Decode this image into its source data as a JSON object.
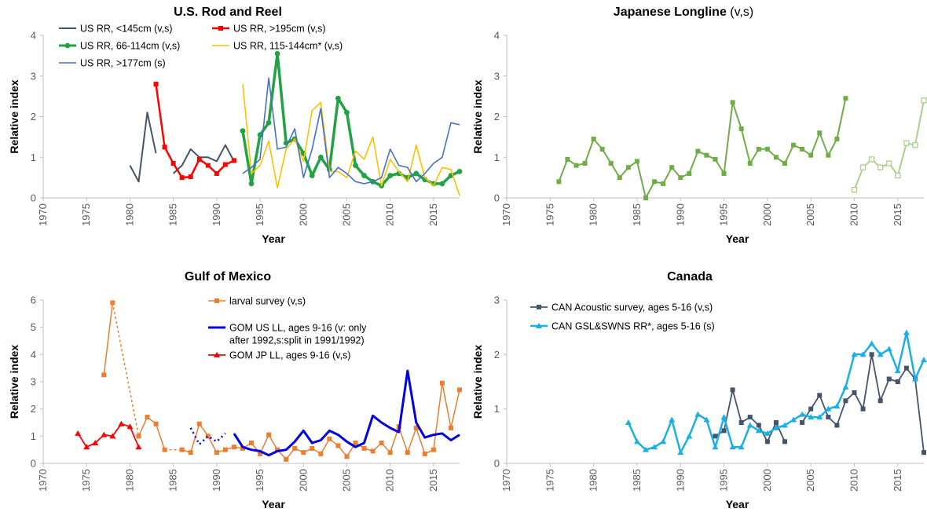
{
  "panels": [
    {
      "title": "U.S. Rod and Reel",
      "title_suffix": "",
      "ylabel": "Relative index",
      "xlabel": "Year",
      "chart_data": {
        "type": "line",
        "xlim": [
          1970,
          2018
        ],
        "ylim": [
          0,
          4
        ],
        "xticks": [
          1970,
          1975,
          1980,
          1985,
          1990,
          1995,
          2000,
          2005,
          2010,
          2015
        ],
        "yticks": [
          0,
          1,
          2,
          3,
          4
        ],
        "legend_position": "top-left",
        "series": [
          {
            "name": "US RR, <145cm (v,s)",
            "color": "#44546A",
            "marker": "none",
            "width": 2,
            "x": [
              1980,
              1981,
              1982,
              1983,
              null,
              1985,
              1986,
              1987,
              1988,
              1989,
              1990,
              1991,
              1992
            ],
            "y": [
              0.8,
              0.4,
              2.1,
              1.1,
              null,
              0.6,
              0.8,
              1.2,
              1.0,
              1.0,
              0.9,
              1.3,
              0.9
            ]
          },
          {
            "name": "US RR, >195cm (v,s)",
            "color": "#FF0000",
            "marker": "square",
            "width": 2.5,
            "x": [
              1983,
              1984,
              1985,
              1986,
              1987,
              1988,
              1989,
              1990,
              1991,
              1992
            ],
            "y": [
              2.8,
              1.25,
              0.85,
              0.5,
              0.52,
              0.95,
              0.8,
              0.6,
              0.82,
              0.92
            ]
          },
          {
            "name": "US RR, 66-114cm (v,s)",
            "color": "#21A345",
            "marker": "circle",
            "width": 3.5,
            "x": [
              1993,
              1994,
              1995,
              1996,
              1997,
              1998,
              1999,
              2000,
              2001,
              2002,
              2003,
              2004,
              2005,
              2006,
              2007,
              2008,
              2009,
              2010,
              2011,
              2012,
              2013,
              2014,
              2015,
              2016,
              2017,
              2018
            ],
            "y": [
              1.65,
              0.35,
              1.55,
              1.85,
              3.55,
              1.35,
              1.45,
              1.1,
              0.55,
              1.0,
              0.7,
              2.45,
              2.1,
              0.8,
              0.55,
              0.4,
              0.3,
              0.55,
              0.6,
              0.5,
              0.6,
              0.45,
              0.35,
              0.35,
              0.55,
              0.65
            ]
          },
          {
            "name": "US RR, 115-144cm* (v,s)",
            "color": "#FFC000",
            "marker": "none",
            "width": 1.6,
            "x": [
              1993,
              1994,
              1995,
              1996,
              1997,
              1998,
              1999,
              2000,
              2001,
              2002,
              2003,
              2004,
              2005,
              2006,
              2007,
              2008,
              2009,
              2010,
              2011,
              2012,
              2013,
              2014,
              2015,
              2016,
              2017,
              2018
            ],
            "y": [
              2.8,
              0.6,
              0.8,
              1.4,
              0.25,
              1.2,
              1.45,
              0.9,
              2.15,
              2.35,
              0.65,
              0.65,
              0.5,
              1.15,
              0.95,
              1.5,
              0.3,
              0.95,
              0.65,
              0.4,
              1.3,
              0.5,
              0.3,
              0.75,
              0.7,
              0.05
            ]
          },
          {
            "name": "US RR, >177cm (s)",
            "color": "#4472C4",
            "marker": "none",
            "width": 1.6,
            "x": [
              1993,
              1994,
              1995,
              1996,
              1997,
              1998,
              1999,
              2000,
              2001,
              2002,
              2003,
              2004,
              2005,
              2006,
              2007,
              2008,
              2009,
              2010,
              2011,
              2012,
              2013,
              2014,
              2015,
              2016,
              2017,
              2018
            ],
            "y": [
              0.6,
              0.75,
              0.95,
              2.95,
              1.2,
              1.25,
              1.7,
              0.5,
              1.2,
              2.2,
              0.5,
              0.75,
              0.6,
              0.4,
              0.35,
              0.4,
              0.5,
              1.2,
              0.8,
              0.75,
              0.4,
              0.6,
              0.85,
              1.0,
              1.85,
              1.8
            ]
          }
        ]
      }
    },
    {
      "title": "Japanese Longline",
      "title_suffix": " (v,s)",
      "ylabel": "Relative index",
      "xlabel": "Year",
      "chart_data": {
        "type": "line",
        "xlim": [
          1970,
          2018
        ],
        "ylim": [
          0,
          4
        ],
        "xticks": [
          1970,
          1975,
          1980,
          1985,
          1990,
          1995,
          2000,
          2005,
          2010,
          2015
        ],
        "yticks": [
          0,
          1,
          2,
          3,
          4
        ],
        "legend_position": "none",
        "series": [
          {
            "name": "",
            "color": "#70AD47",
            "marker": "square",
            "width": 2,
            "x": [
              1976,
              1977,
              1978,
              1979,
              1980,
              1981,
              1982,
              1983,
              1984,
              1985,
              1986,
              1987,
              1988,
              1989,
              1990,
              1991,
              1992,
              1993,
              1994,
              1995,
              1996,
              1997,
              1998,
              1999,
              2000,
              2001,
              2002,
              2003,
              2004,
              2005,
              2006,
              2007,
              2008,
              2009
            ],
            "y": [
              0.4,
              0.95,
              0.8,
              0.85,
              1.45,
              1.2,
              0.85,
              0.5,
              0.75,
              0.9,
              0.0,
              0.4,
              0.35,
              0.75,
              0.5,
              0.6,
              1.15,
              1.05,
              0.95,
              0.6,
              2.35,
              1.7,
              0.85,
              1.2,
              1.2,
              1.0,
              0.85,
              1.3,
              1.2,
              1.05,
              1.6,
              1.05,
              1.45,
              2.45
            ]
          },
          {
            "name": "",
            "color": "#A9D18E",
            "marker": "square-open",
            "width": 2,
            "x": [
              2010,
              2011,
              2012,
              2013,
              2014,
              2015,
              2016,
              2017,
              2018
            ],
            "y": [
              0.2,
              0.75,
              0.95,
              0.75,
              0.85,
              0.55,
              1.35,
              1.3,
              2.4
            ]
          }
        ]
      }
    },
    {
      "title": "Gulf of Mexico",
      "title_suffix": "",
      "ylabel": "Relative index",
      "xlabel": "Year",
      "chart_data": {
        "type": "line",
        "xlim": [
          1970,
          2018
        ],
        "ylim": [
          0,
          6
        ],
        "xticks": [
          1970,
          1975,
          1980,
          1985,
          1990,
          1995,
          2000,
          2005,
          2010,
          2015
        ],
        "yticks": [
          0,
          1,
          2,
          3,
          4,
          5,
          6
        ],
        "legend_position": "top-right",
        "series": [
          {
            "name": "larval survey (v,s)",
            "color": "#ED7D31",
            "marker": "square",
            "width": 1.5,
            "x": [
              1977,
              1978,
              null,
              1981,
              1982,
              1983,
              1984,
              null,
              1986,
              1987,
              1988,
              1989,
              1990,
              1991,
              1992,
              1993,
              1994,
              1995,
              1996,
              1997,
              1998,
              1999,
              2000,
              2001,
              2002,
              2003,
              2004,
              2005,
              2006,
              2007,
              2008,
              2009,
              2010,
              2011,
              2012,
              2013,
              2014,
              2015,
              2016,
              2017,
              2018
            ],
            "y": [
              3.25,
              5.9,
              null,
              1.0,
              1.7,
              1.45,
              0.5,
              null,
              0.5,
              0.4,
              1.45,
              1.0,
              0.4,
              0.5,
              0.6,
              0.55,
              0.75,
              0.35,
              1.05,
              0.5,
              0.15,
              0.55,
              0.4,
              0.55,
              0.35,
              0.9,
              0.65,
              0.25,
              0.75,
              0.55,
              0.45,
              0.75,
              0.4,
              1.35,
              0.4,
              1.3,
              0.35,
              0.5,
              2.95,
              1.3,
              2.7
            ]
          },
          {
            "name": "",
            "color": "#ED7D31",
            "marker": "none",
            "width": 1.5,
            "dash": "3,3",
            "x": [
              1978,
              1981
            ],
            "y": [
              5.9,
              1.0
            ]
          },
          {
            "name": "",
            "color": "#ED7D31",
            "marker": "none",
            "width": 1.5,
            "dash": "3,3",
            "x": [
              1984,
              1986
            ],
            "y": [
              0.5,
              0.5
            ]
          },
          {
            "name": "GOM US LL, ages 9-16 (v: only after 1992,s:split in 1991/1992)",
            "color": "#0000E0",
            "marker": "none",
            "width": 3,
            "x": [
              1992,
              1993,
              1994,
              1995,
              1996,
              1997,
              1998,
              1999,
              2000,
              2001,
              2002,
              2003,
              2004,
              2005,
              2006,
              2007,
              2008,
              2009,
              2010,
              2011,
              2012,
              2013,
              2014,
              2015,
              2016,
              2017,
              2018
            ],
            "y": [
              1.1,
              0.6,
              0.5,
              0.45,
              0.3,
              0.45,
              0.5,
              0.8,
              1.2,
              0.75,
              0.85,
              1.2,
              1.05,
              0.8,
              0.6,
              0.75,
              1.75,
              1.5,
              1.3,
              1.15,
              3.4,
              1.5,
              0.95,
              1.05,
              1.1,
              0.85,
              1.05
            ]
          },
          {
            "name": "",
            "color": "#0000E0",
            "marker": "none",
            "width": 2.5,
            "dash": "2,4",
            "x": [
              1987,
              1988,
              1989,
              1990,
              1991
            ],
            "y": [
              1.3,
              0.7,
              1.0,
              0.8,
              1.1
            ]
          },
          {
            "name": "GOM JP LL, ages 9-16 (v,s)",
            "color": "#FF0000",
            "marker": "triangle",
            "width": 1.8,
            "x": [
              1974,
              1975,
              1976,
              1977,
              1978,
              1979,
              1980,
              1981
            ],
            "y": [
              1.1,
              0.6,
              0.75,
              1.05,
              1.0,
              1.45,
              1.35,
              0.6
            ]
          }
        ]
      }
    },
    {
      "title": "Canada",
      "title_suffix": "",
      "ylabel": "Relative index",
      "xlabel": "Year",
      "chart_data": {
        "type": "line",
        "xlim": [
          1970,
          2018
        ],
        "ylim": [
          0,
          3
        ],
        "xticks": [
          1970,
          1975,
          1980,
          1985,
          1990,
          1995,
          2000,
          2005,
          2010,
          2015
        ],
        "yticks": [
          0,
          1,
          2,
          3
        ],
        "legend_position": "top-left",
        "series": [
          {
            "name": "CAN Acoustic survey, ages 5-16 (v,s)",
            "color": "#44546A",
            "marker": "square",
            "width": 1.8,
            "x": [
              1994,
              1995,
              1996,
              1997,
              1998,
              1999,
              2000,
              2001,
              2002,
              null,
              2004,
              2005,
              2006,
              2007,
              2008,
              2009,
              2010,
              2011,
              2012,
              2013,
              2014,
              2015,
              2016,
              2017,
              2018
            ],
            "y": [
              0.5,
              0.6,
              1.35,
              0.75,
              0.85,
              0.7,
              0.4,
              0.75,
              0.4,
              null,
              0.75,
              1.0,
              1.25,
              0.85,
              0.7,
              1.15,
              1.3,
              1.0,
              2.0,
              1.15,
              1.55,
              1.5,
              1.75,
              1.55,
              0.2
            ]
          },
          {
            "name": "CAN GSL&SWNS RR*, ages 5-16 (s)",
            "color": "#1AAFE6",
            "marker": "triangle",
            "width": 2.5,
            "x": [
              1984,
              1985,
              1986,
              1987,
              1988,
              1989,
              1990,
              1991,
              1992,
              1993,
              1994,
              1995,
              1996,
              1997,
              1998,
              1999,
              2000,
              2001,
              2002,
              2003,
              2004,
              2005,
              2006,
              2007,
              2008,
              2009,
              2010,
              2011,
              2012,
              2013,
              2014,
              2015,
              2016,
              2017,
              2018
            ],
            "y": [
              0.75,
              0.4,
              0.25,
              0.3,
              0.4,
              0.8,
              0.2,
              0.5,
              0.9,
              0.8,
              0.3,
              0.85,
              0.3,
              0.3,
              0.7,
              0.6,
              0.55,
              0.65,
              0.7,
              0.8,
              0.9,
              0.85,
              0.85,
              1.0,
              1.05,
              1.4,
              2.0,
              2.0,
              2.2,
              2.0,
              2.1,
              1.7,
              2.4,
              1.55,
              1.9
            ]
          }
        ]
      }
    }
  ]
}
